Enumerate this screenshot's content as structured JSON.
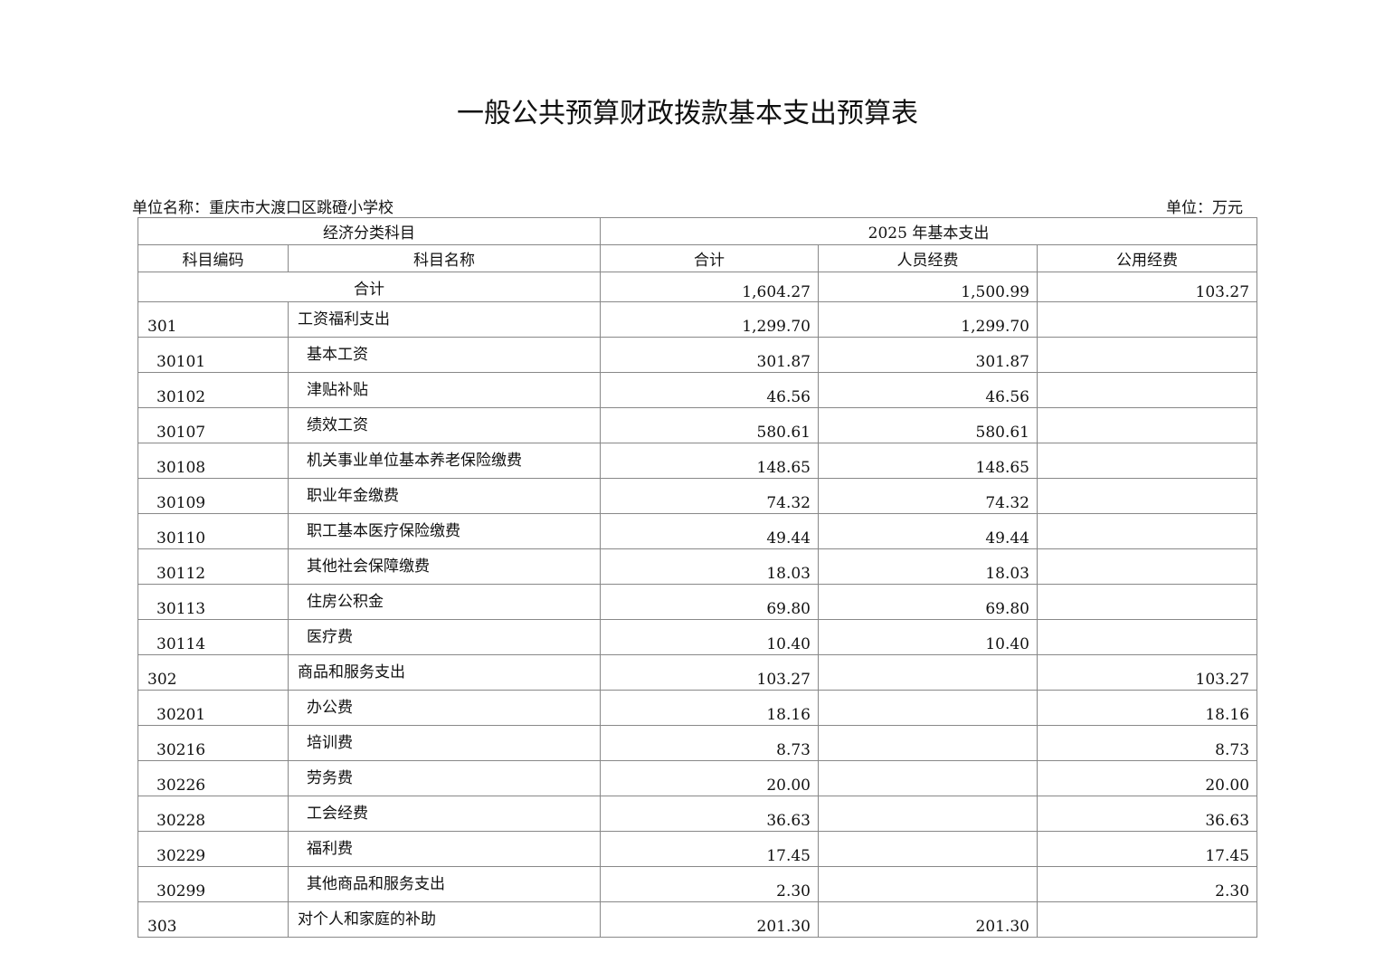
{
  "title": "一般公共预算财政拨款基本支出预算表",
  "unit_name": "单位名称：重庆市大渡口区跳磴小学校",
  "unit": "单位：万元",
  "header": {
    "group_left": "经济分类科目",
    "group_right": "2025 年基本支出",
    "code": "科目编码",
    "name": "科目名称",
    "total": "合计",
    "personnel": "人员经费",
    "public": "公用经费"
  },
  "total_row": {
    "label": "合计",
    "total": "1,604.27",
    "personnel": "1,500.99",
    "public": "103.27"
  },
  "rows": [
    {
      "code": "301",
      "name": "工资福利支出",
      "total": "1,299.70",
      "personnel": "1,299.70",
      "public": "",
      "level": 1
    },
    {
      "code": "30101",
      "name": "基本工资",
      "total": "301.87",
      "personnel": "301.87",
      "public": "",
      "level": 2
    },
    {
      "code": "30102",
      "name": "津贴补贴",
      "total": "46.56",
      "personnel": "46.56",
      "public": "",
      "level": 2
    },
    {
      "code": "30107",
      "name": "绩效工资",
      "total": "580.61",
      "personnel": "580.61",
      "public": "",
      "level": 2
    },
    {
      "code": "30108",
      "name": "机关事业单位基本养老保险缴费",
      "total": "148.65",
      "personnel": "148.65",
      "public": "",
      "level": 2
    },
    {
      "code": "30109",
      "name": "职业年金缴费",
      "total": "74.32",
      "personnel": "74.32",
      "public": "",
      "level": 2
    },
    {
      "code": "30110",
      "name": "职工基本医疗保险缴费",
      "total": "49.44",
      "personnel": "49.44",
      "public": "",
      "level": 2
    },
    {
      "code": "30112",
      "name": "其他社会保障缴费",
      "total": "18.03",
      "personnel": "18.03",
      "public": "",
      "level": 2
    },
    {
      "code": "30113",
      "name": "住房公积金",
      "total": "69.80",
      "personnel": "69.80",
      "public": "",
      "level": 2
    },
    {
      "code": "30114",
      "name": "医疗费",
      "total": "10.40",
      "personnel": "10.40",
      "public": "",
      "level": 2
    },
    {
      "code": "302",
      "name": "商品和服务支出",
      "total": "103.27",
      "personnel": "",
      "public": "103.27",
      "level": 1
    },
    {
      "code": "30201",
      "name": "办公费",
      "total": "18.16",
      "personnel": "",
      "public": "18.16",
      "level": 2
    },
    {
      "code": "30216",
      "name": "培训费",
      "total": "8.73",
      "personnel": "",
      "public": "8.73",
      "level": 2
    },
    {
      "code": "30226",
      "name": "劳务费",
      "total": "20.00",
      "personnel": "",
      "public": "20.00",
      "level": 2
    },
    {
      "code": "30228",
      "name": "工会经费",
      "total": "36.63",
      "personnel": "",
      "public": "36.63",
      "level": 2
    },
    {
      "code": "30229",
      "name": "福利费",
      "total": "17.45",
      "personnel": "",
      "public": "17.45",
      "level": 2
    },
    {
      "code": "30299",
      "name": "其他商品和服务支出",
      "total": "2.30",
      "personnel": "",
      "public": "2.30",
      "level": 2
    },
    {
      "code": "303",
      "name": "对个人和家庭的补助",
      "total": "201.30",
      "personnel": "201.30",
      "public": "",
      "level": 1
    }
  ]
}
